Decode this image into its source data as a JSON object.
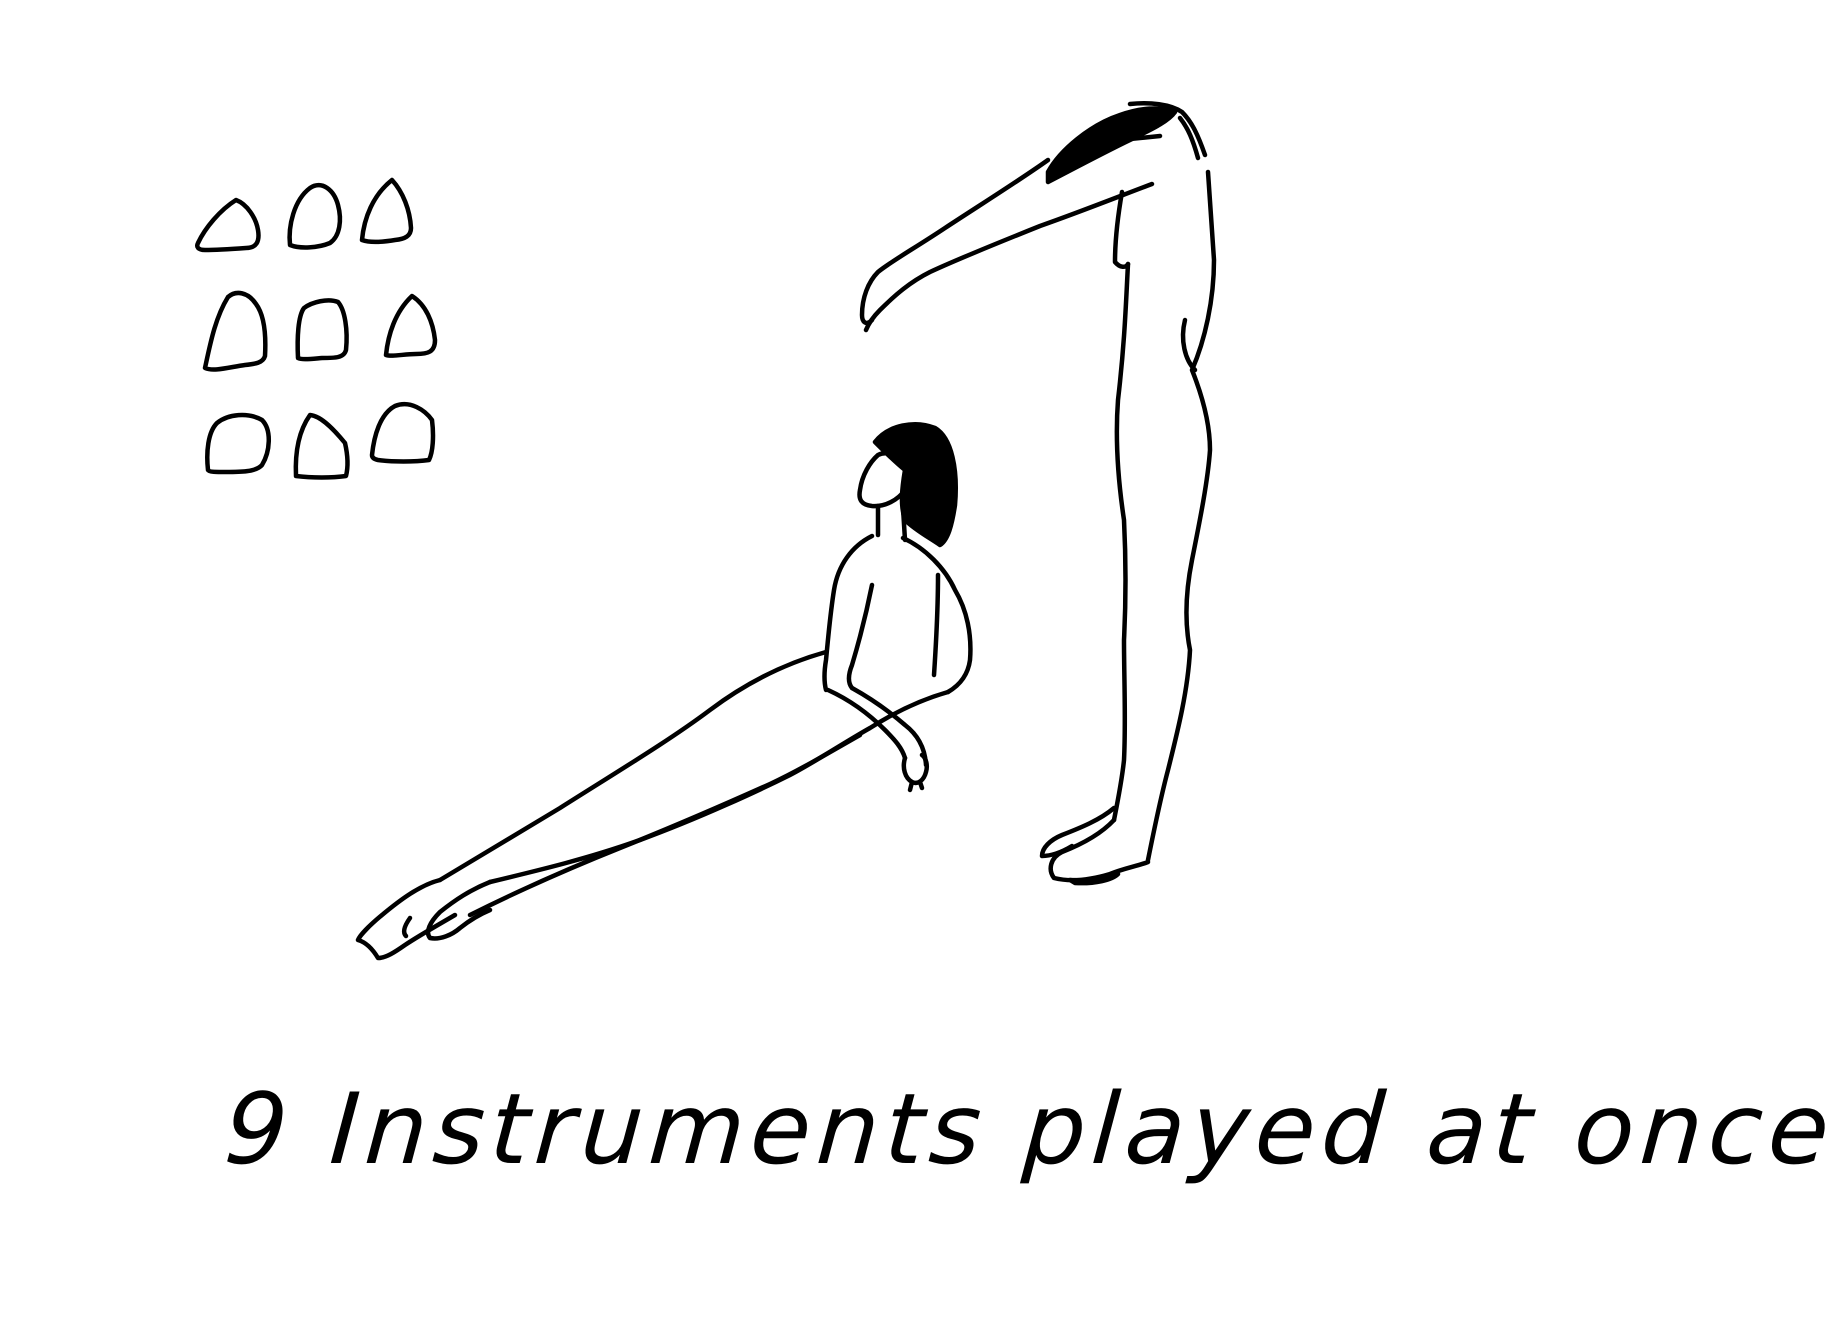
{
  "caption": "9 Instruments played at once",
  "instruments": {
    "count": 9,
    "rows": 3,
    "columns": 3
  },
  "colors": {
    "background": "#ffffff",
    "ink": "#000000"
  }
}
